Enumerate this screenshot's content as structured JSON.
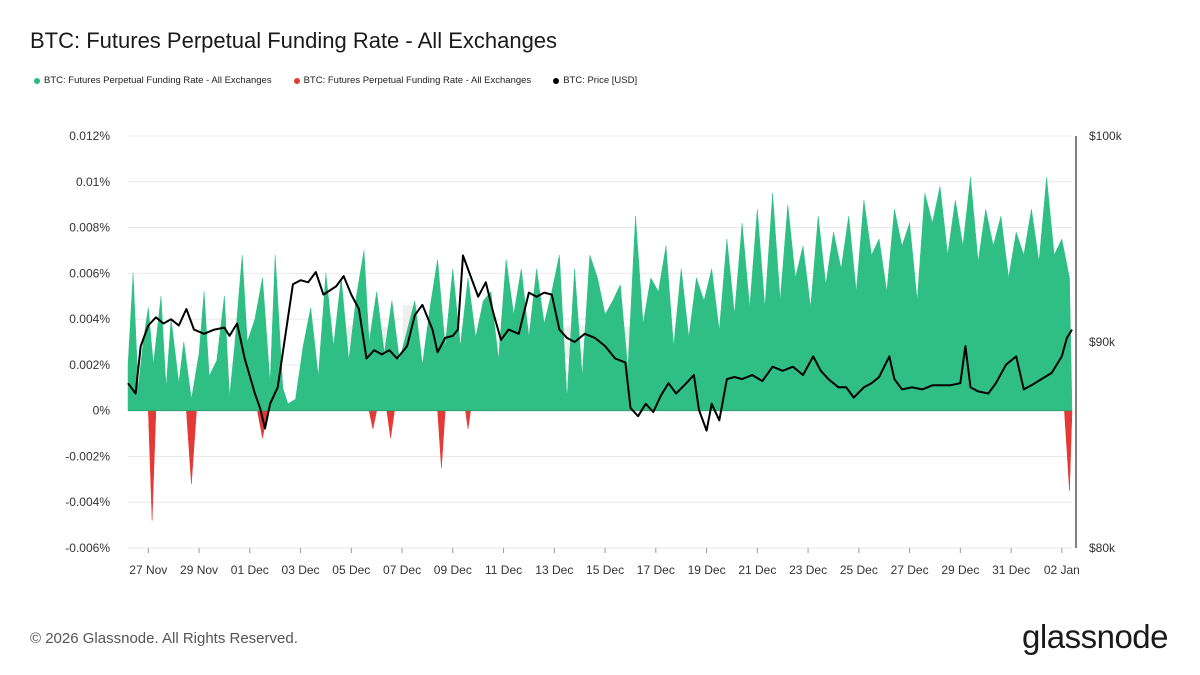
{
  "title": "BTC: Futures Perpetual Funding Rate - All Exchanges",
  "legend": [
    {
      "label": "BTC: Futures Perpetual Funding Rate - All Exchanges",
      "color": "#2bb97f"
    },
    {
      "label": "BTC: Futures Perpetual Funding Rate - All Exchanges",
      "color": "#e53935"
    },
    {
      "label": "BTC: Price [USD]",
      "color": "#000000"
    }
  ],
  "footer": "© 2026 Glassnode. All Rights Reserved.",
  "brand": "glassnode",
  "watermark": "glassnode",
  "colors": {
    "positive": "#2fbf85",
    "negative": "#e53935",
    "price": "#000000",
    "grid": "#e9e9e9"
  },
  "chart_data": {
    "type": "area",
    "x_tick_labels": [
      "27 Nov",
      "29 Nov",
      "01 Dec",
      "03 Dec",
      "05 Dec",
      "07 Dec",
      "09 Dec",
      "11 Dec",
      "13 Dec",
      "15 Dec",
      "17 Dec",
      "19 Dec",
      "21 Dec",
      "23 Dec",
      "25 Dec",
      "27 Dec",
      "29 Dec",
      "31 Dec",
      "02 Jan"
    ],
    "x_range_days": [
      0,
      37.2
    ],
    "x_first_tick_day": 0.8,
    "y_left": {
      "ticks": [
        "0.012%",
        "0.01%",
        "0.008%",
        "0.006%",
        "0.004%",
        "0.002%",
        "0%",
        "-0.002%",
        "-0.004%",
        "-0.006%"
      ],
      "range": [
        -0.006,
        0.012
      ]
    },
    "y_right": {
      "ticks": [
        "$100k",
        "$90k",
        "$80k"
      ],
      "range": [
        80000,
        100000
      ]
    },
    "grid": true,
    "legend_position": "top-left",
    "series": [
      {
        "name": "BTC: Futures Perpetual Funding Rate - All Exchanges",
        "sign": "positive",
        "points": [
          [
            0,
            0.002
          ],
          [
            0.2,
            0.006
          ],
          [
            0.4,
            0.001
          ],
          [
            0.6,
            0.003
          ],
          [
            0.8,
            0.0045
          ],
          [
            1,
            0.002
          ],
          [
            1.3,
            0.005
          ],
          [
            1.5,
            0.001
          ],
          [
            1.7,
            0.004
          ],
          [
            2,
            0.0012
          ],
          [
            2.2,
            0.003
          ],
          [
            2.5,
            0.0005
          ],
          [
            2.8,
            0.0025
          ],
          [
            3,
            0.0052
          ],
          [
            3.2,
            0.0015
          ],
          [
            3.5,
            0.0022
          ],
          [
            3.8,
            0.005
          ],
          [
            4,
            0.0006
          ],
          [
            4.2,
            0.0028
          ],
          [
            4.5,
            0.0068
          ],
          [
            4.7,
            0.003
          ],
          [
            5,
            0.004
          ],
          [
            5.3,
            0.0058
          ],
          [
            5.6,
            0.0012
          ],
          [
            5.8,
            0.0068
          ],
          [
            6.1,
            0.001
          ],
          [
            6.3,
            0.0003
          ],
          [
            6.6,
            0.0005
          ],
          [
            6.9,
            0.0028
          ],
          [
            7.2,
            0.0045
          ],
          [
            7.5,
            0.0015
          ],
          [
            7.8,
            0.006
          ],
          [
            8.1,
            0.0028
          ],
          [
            8.4,
            0.0058
          ],
          [
            8.7,
            0.0022
          ],
          [
            9,
            0.005
          ],
          [
            9.3,
            0.007
          ],
          [
            9.5,
            0.003
          ],
          [
            9.8,
            0.0052
          ],
          [
            10.1,
            0.0025
          ],
          [
            10.4,
            0.0048
          ],
          [
            10.7,
            0.0022
          ],
          [
            11,
            0.0035
          ],
          [
            11.3,
            0.0048
          ],
          [
            11.6,
            0.002
          ],
          [
            11.9,
            0.0045
          ],
          [
            12.2,
            0.0066
          ],
          [
            12.5,
            0.0028
          ],
          [
            12.8,
            0.0062
          ],
          [
            13.1,
            0.0028
          ],
          [
            13.4,
            0.0058
          ],
          [
            13.7,
            0.0032
          ],
          [
            14,
            0.0048
          ],
          [
            14.3,
            0.0052
          ],
          [
            14.6,
            0.0022
          ],
          [
            14.9,
            0.0066
          ],
          [
            15.2,
            0.0042
          ],
          [
            15.5,
            0.0062
          ],
          [
            15.8,
            0.0032
          ],
          [
            16.1,
            0.0062
          ],
          [
            16.4,
            0.0038
          ],
          [
            16.7,
            0.0052
          ],
          [
            17,
            0.0068
          ],
          [
            17.3,
            0.0005
          ],
          [
            17.6,
            0.0062
          ],
          [
            17.9,
            0.0015
          ],
          [
            18.2,
            0.0068
          ],
          [
            18.5,
            0.0058
          ],
          [
            18.8,
            0.0042
          ],
          [
            19.1,
            0.0048
          ],
          [
            19.4,
            0.0055
          ],
          [
            19.7,
            0.0018
          ],
          [
            20,
            0.0085
          ],
          [
            20.3,
            0.0038
          ],
          [
            20.6,
            0.0058
          ],
          [
            20.9,
            0.0052
          ],
          [
            21.2,
            0.0072
          ],
          [
            21.5,
            0.0028
          ],
          [
            21.8,
            0.0062
          ],
          [
            22.1,
            0.0032
          ],
          [
            22.4,
            0.0058
          ],
          [
            22.7,
            0.0048
          ],
          [
            23,
            0.0062
          ],
          [
            23.3,
            0.0035
          ],
          [
            23.6,
            0.0075
          ],
          [
            23.9,
            0.0042
          ],
          [
            24.2,
            0.0082
          ],
          [
            24.5,
            0.0045
          ],
          [
            24.8,
            0.0088
          ],
          [
            25.1,
            0.0045
          ],
          [
            25.4,
            0.0095
          ],
          [
            25.7,
            0.0048
          ],
          [
            26,
            0.009
          ],
          [
            26.3,
            0.0058
          ],
          [
            26.6,
            0.0072
          ],
          [
            26.9,
            0.0045
          ],
          [
            27.2,
            0.0085
          ],
          [
            27.5,
            0.0055
          ],
          [
            27.8,
            0.0078
          ],
          [
            28.1,
            0.0062
          ],
          [
            28.4,
            0.0085
          ],
          [
            28.7,
            0.0052
          ],
          [
            29,
            0.0092
          ],
          [
            29.3,
            0.0068
          ],
          [
            29.6,
            0.0075
          ],
          [
            29.9,
            0.0052
          ],
          [
            30.2,
            0.0088
          ],
          [
            30.5,
            0.0072
          ],
          [
            30.8,
            0.0082
          ],
          [
            31.1,
            0.0048
          ],
          [
            31.4,
            0.0095
          ],
          [
            31.7,
            0.0082
          ],
          [
            32,
            0.0098
          ],
          [
            32.3,
            0.0068
          ],
          [
            32.6,
            0.0092
          ],
          [
            32.9,
            0.0072
          ],
          [
            33.2,
            0.0102
          ],
          [
            33.5,
            0.0065
          ],
          [
            33.8,
            0.0088
          ],
          [
            34.1,
            0.0072
          ],
          [
            34.4,
            0.0085
          ],
          [
            34.7,
            0.0058
          ],
          [
            35,
            0.0078
          ],
          [
            35.3,
            0.0068
          ],
          [
            35.6,
            0.0088
          ],
          [
            35.9,
            0.0065
          ],
          [
            36.2,
            0.0102
          ],
          [
            36.5,
            0.0068
          ],
          [
            36.8,
            0.0075
          ],
          [
            37.1,
            0.0058
          ],
          [
            37.2,
            0
          ]
        ]
      },
      {
        "name": "BTC: Futures Perpetual Funding Rate - All Exchanges",
        "sign": "negative",
        "points": [
          [
            0.8,
            0
          ],
          [
            0.95,
            -0.0048
          ],
          [
            1.1,
            0
          ],
          [
            2.3,
            0
          ],
          [
            2.5,
            -0.0032
          ],
          [
            2.7,
            0
          ],
          [
            5.1,
            0
          ],
          [
            5.3,
            -0.0012
          ],
          [
            5.5,
            0
          ],
          [
            9.5,
            0
          ],
          [
            9.65,
            -0.0008
          ],
          [
            9.8,
            0
          ],
          [
            10.2,
            0
          ],
          [
            10.35,
            -0.0012
          ],
          [
            10.5,
            0
          ],
          [
            12.2,
            0
          ],
          [
            12.35,
            -0.0025
          ],
          [
            12.5,
            0
          ],
          [
            13.3,
            0
          ],
          [
            13.4,
            -0.0008
          ],
          [
            13.5,
            0
          ],
          [
            36.9,
            0
          ],
          [
            37.1,
            -0.0035
          ],
          [
            37.2,
            0
          ]
        ]
      },
      {
        "name": "BTC: Price [USD]",
        "axis": "right",
        "points": [
          [
            0,
            88000
          ],
          [
            0.3,
            87500
          ],
          [
            0.5,
            89800
          ],
          [
            0.8,
            90800
          ],
          [
            1.1,
            91200
          ],
          [
            1.4,
            90900
          ],
          [
            1.7,
            91100
          ],
          [
            2,
            90800
          ],
          [
            2.3,
            91600
          ],
          [
            2.6,
            90600
          ],
          [
            3,
            90400
          ],
          [
            3.4,
            90600
          ],
          [
            3.8,
            90700
          ],
          [
            4,
            90300
          ],
          [
            4.3,
            90900
          ],
          [
            4.6,
            89200
          ],
          [
            5,
            87500
          ],
          [
            5.2,
            86800
          ],
          [
            5.4,
            85800
          ],
          [
            5.6,
            87000
          ],
          [
            5.9,
            87800
          ],
          [
            6.2,
            90300
          ],
          [
            6.5,
            92800
          ],
          [
            6.8,
            93000
          ],
          [
            7.1,
            92900
          ],
          [
            7.4,
            93400
          ],
          [
            7.7,
            92300
          ],
          [
            8.2,
            92700
          ],
          [
            8.5,
            93200
          ],
          [
            8.8,
            92300
          ],
          [
            9.1,
            91600
          ],
          [
            9.4,
            89200
          ],
          [
            9.7,
            89600
          ],
          [
            10,
            89400
          ],
          [
            10.3,
            89600
          ],
          [
            10.6,
            89200
          ],
          [
            11,
            89800
          ],
          [
            11.3,
            91300
          ],
          [
            11.6,
            91800
          ],
          [
            12,
            90600
          ],
          [
            12.2,
            89500
          ],
          [
            12.5,
            90200
          ],
          [
            12.8,
            90300
          ],
          [
            13,
            90600
          ],
          [
            13.2,
            94200
          ],
          [
            13.5,
            93200
          ],
          [
            13.8,
            92200
          ],
          [
            14.1,
            92900
          ],
          [
            14.4,
            91400
          ],
          [
            14.7,
            90100
          ],
          [
            15,
            90600
          ],
          [
            15.4,
            90400
          ],
          [
            15.8,
            92400
          ],
          [
            16.1,
            92200
          ],
          [
            16.4,
            92400
          ],
          [
            16.7,
            92300
          ],
          [
            17,
            90600
          ],
          [
            17.3,
            90200
          ],
          [
            17.6,
            90000
          ],
          [
            18,
            90400
          ],
          [
            18.4,
            90200
          ],
          [
            18.8,
            89800
          ],
          [
            19.2,
            89200
          ],
          [
            19.6,
            89000
          ],
          [
            19.8,
            86800
          ],
          [
            20.1,
            86400
          ],
          [
            20.4,
            87000
          ],
          [
            20.7,
            86600
          ],
          [
            21,
            87400
          ],
          [
            21.3,
            88000
          ],
          [
            21.6,
            87500
          ],
          [
            22,
            88000
          ],
          [
            22.3,
            88400
          ],
          [
            22.5,
            86700
          ],
          [
            22.8,
            85700
          ],
          [
            23,
            87000
          ],
          [
            23.3,
            86200
          ],
          [
            23.6,
            88200
          ],
          [
            23.9,
            88300
          ],
          [
            24.2,
            88200
          ],
          [
            24.6,
            88400
          ],
          [
            25,
            88100
          ],
          [
            25.4,
            88800
          ],
          [
            25.8,
            88600
          ],
          [
            26.2,
            88800
          ],
          [
            26.6,
            88400
          ],
          [
            27,
            89300
          ],
          [
            27.3,
            88600
          ],
          [
            27.6,
            88200
          ],
          [
            28,
            87800
          ],
          [
            28.3,
            87800
          ],
          [
            28.6,
            87300
          ],
          [
            29,
            87800
          ],
          [
            29.3,
            88000
          ],
          [
            29.6,
            88300
          ],
          [
            30,
            89300
          ],
          [
            30.2,
            88200
          ],
          [
            30.5,
            87700
          ],
          [
            30.9,
            87800
          ],
          [
            31.3,
            87700
          ],
          [
            31.7,
            87900
          ],
          [
            32,
            87900
          ],
          [
            32.4,
            87900
          ],
          [
            32.8,
            88000
          ],
          [
            33,
            89800
          ],
          [
            33.2,
            87800
          ],
          [
            33.5,
            87600
          ],
          [
            33.9,
            87500
          ],
          [
            34.2,
            88000
          ],
          [
            34.6,
            88900
          ],
          [
            35,
            89300
          ],
          [
            35.3,
            87700
          ],
          [
            35.6,
            87900
          ],
          [
            36,
            88200
          ],
          [
            36.4,
            88500
          ],
          [
            36.8,
            89300
          ],
          [
            37,
            90200
          ],
          [
            37.2,
            90600
          ]
        ]
      }
    ]
  }
}
